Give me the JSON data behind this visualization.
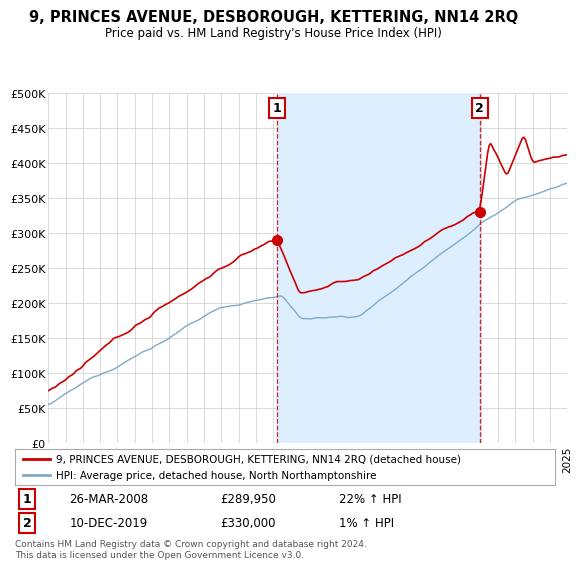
{
  "title": "9, PRINCES AVENUE, DESBOROUGH, KETTERING, NN14 2RQ",
  "subtitle": "Price paid vs. HM Land Registry's House Price Index (HPI)",
  "ylabel_ticks": [
    "£0",
    "£50K",
    "£100K",
    "£150K",
    "£200K",
    "£250K",
    "£300K",
    "£350K",
    "£400K",
    "£450K",
    "£500K"
  ],
  "ytick_values": [
    0,
    50000,
    100000,
    150000,
    200000,
    250000,
    300000,
    350000,
    400000,
    450000,
    500000
  ],
  "ylim": [
    0,
    500000
  ],
  "sale1_date": "26-MAR-2008",
  "sale1_price": 289950,
  "sale1_hpi": "22% ↑ HPI",
  "sale1_x": 2008.23,
  "sale2_date": "10-DEC-2019",
  "sale2_price": 330000,
  "sale2_hpi": "1% ↑ HPI",
  "sale2_x": 2019.94,
  "legend_label1": "9, PRINCES AVENUE, DESBOROUGH, KETTERING, NN14 2RQ (detached house)",
  "legend_label2": "HPI: Average price, detached house, North Northamptonshire",
  "footnote": "Contains HM Land Registry data © Crown copyright and database right 2024.\nThis data is licensed under the Open Government Licence v3.0.",
  "house_color": "#cc0000",
  "hpi_color": "#7faacc",
  "vline_color": "#cc0000",
  "shade_color": "#ddeeff",
  "background_color": "#ffffff",
  "grid_color": "#cccccc"
}
